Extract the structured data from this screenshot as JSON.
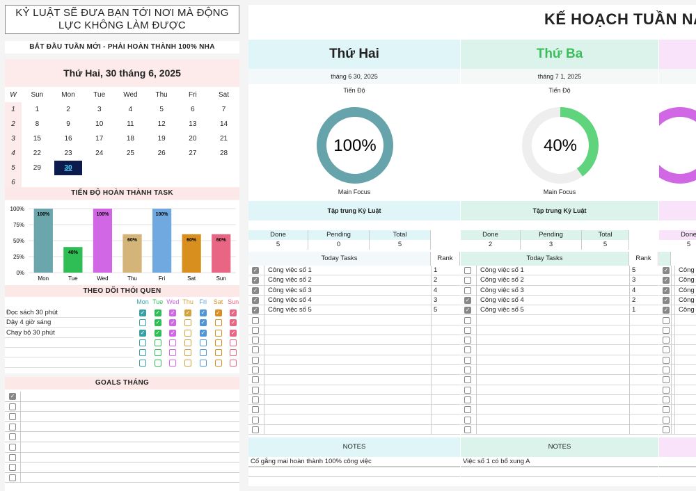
{
  "quote": "KỶ LUẬT SẼ ĐƯA BẠN TỚI NƠI MÀ ĐỘNG LỰC KHÔNG LÀM ĐƯỢC",
  "week_header": "BẮT ĐẦU TUẦN MỚI - PHẢI HOÀN THÀNH 100% NHA",
  "calendar": {
    "title": "Thứ Hai, 30 tháng 6, 2025",
    "week_label": "W",
    "day_headers": [
      "Sun",
      "Mon",
      "Tue",
      "Wed",
      "Thu",
      "Fri",
      "Sat"
    ],
    "week_numbers": [
      "1",
      "2",
      "3",
      "4",
      "5",
      "6"
    ],
    "weeks": [
      [
        "1",
        "2",
        "3",
        "4",
        "5",
        "6",
        "7"
      ],
      [
        "8",
        "9",
        "10",
        "11",
        "12",
        "13",
        "14"
      ],
      [
        "15",
        "16",
        "17",
        "18",
        "19",
        "20",
        "21"
      ],
      [
        "22",
        "23",
        "24",
        "25",
        "26",
        "27",
        "28"
      ],
      [
        "29",
        "30",
        "",
        "",
        "",
        "",
        ""
      ],
      [
        "",
        "",
        "",
        "",
        "",
        "",
        ""
      ]
    ],
    "selected_day": "30"
  },
  "chart_section_title": "TIẾN ĐỘ HOÀN THÀNH TASK",
  "chart_data": {
    "type": "bar",
    "categories": [
      "Mon",
      "Tue",
      "Wed",
      "Thu",
      "Fri",
      "Sat",
      "Sun"
    ],
    "values": [
      100,
      40,
      100,
      60,
      100,
      60,
      60
    ],
    "data_labels": [
      "100%",
      "40%",
      "100%",
      "60%",
      "100%",
      "60%",
      "60%"
    ],
    "colors": [
      "#6aa6ac",
      "#2fbd55",
      "#d267e6",
      "#d4b479",
      "#6fa9df",
      "#d88f1d",
      "#e86683"
    ],
    "ylim": [
      0,
      100
    ],
    "yticks": [
      "0%",
      "25%",
      "50%",
      "75%",
      "100%"
    ],
    "grid": true
  },
  "habits": {
    "title": "THEO DÕI THÓI QUEN",
    "days": [
      "Mon",
      "Tue",
      "Wed",
      "Thu",
      "Fri",
      "Sat",
      "Sun"
    ],
    "day_colors": [
      "#3aa0a8",
      "#2fbd55",
      "#d267e6",
      "#d4a23a",
      "#4f95d8",
      "#d88f1d",
      "#e86683"
    ],
    "items": [
      {
        "name": "Đọc sách 30 phút",
        "checks": [
          true,
          true,
          true,
          true,
          true,
          true,
          true
        ]
      },
      {
        "name": "Dậy 4 giờ sáng",
        "checks": [
          false,
          true,
          true,
          false,
          true,
          false,
          true
        ]
      },
      {
        "name": "Chạy bộ 30 phút",
        "checks": [
          true,
          true,
          true,
          false,
          true,
          false,
          true
        ]
      },
      {
        "name": "",
        "checks": [
          false,
          false,
          false,
          false,
          false,
          false,
          false
        ]
      },
      {
        "name": "",
        "checks": [
          false,
          false,
          false,
          false,
          false,
          false,
          false
        ]
      },
      {
        "name": "",
        "checks": [
          false,
          false,
          false,
          false,
          false,
          false,
          false
        ]
      }
    ]
  },
  "goals": {
    "title": "GOALS THÁNG",
    "checks": [
      true,
      false,
      false,
      false,
      false,
      false,
      false,
      false,
      false
    ]
  },
  "page_title": "KẾ HOẠCH TUẦN NÀY",
  "days": [
    {
      "name": "Thứ Hai",
      "name_color": "#222222",
      "head_bg": "#dff5f8",
      "accent_bg": "#dff5f8",
      "date": "tháng 6 30, 2025",
      "progress_label": "Tiến Độ",
      "progress": 100,
      "progress_text": "100%",
      "ring_color": "#67a3ab",
      "focus_label": "Main Focus",
      "focus": "Tập trung Kỷ Luật",
      "stats_labels": [
        "Done",
        "Pending",
        "Total"
      ],
      "stats_values": [
        "5",
        "0",
        "5"
      ],
      "task_header": "Today Tasks",
      "rank_header": "Rank",
      "tasks": [
        {
          "name": "Công việc số 1",
          "rank": "1",
          "done": true
        },
        {
          "name": "Công việc số 2",
          "rank": "2",
          "done": true
        },
        {
          "name": "Công việc số 3",
          "rank": "4",
          "done": true
        },
        {
          "name": "Công việc số 4",
          "rank": "3",
          "done": true
        },
        {
          "name": "Công việc số 5",
          "rank": "5",
          "done": true
        }
      ],
      "notes_header": "NOTES",
      "note": "Cố gắng mai hoàn thành 100% công việc"
    },
    {
      "name": "Thứ Ba",
      "name_color": "#3bbf5a",
      "head_bg": "#dcf3ec",
      "accent_bg": "#dcf3ec",
      "date": "tháng 7 1, 2025",
      "progress_label": "Tiến Độ",
      "progress": 40,
      "progress_text": "40%",
      "ring_color": "#5fd47d",
      "focus_label": "Main Focus",
      "focus": "Tập trung Kỷ Luật",
      "stats_labels": [
        "Done",
        "Pending",
        "Total"
      ],
      "stats_values": [
        "2",
        "3",
        "5"
      ],
      "task_header": "Today Tasks",
      "rank_header": "Rank",
      "tasks": [
        {
          "name": "Công việc số 1",
          "rank": "5",
          "done": false
        },
        {
          "name": "Công việc số 2",
          "rank": "3",
          "done": false
        },
        {
          "name": "Công việc số 3",
          "rank": "4",
          "done": false
        },
        {
          "name": "Công việc số 4",
          "rank": "2",
          "done": true
        },
        {
          "name": "Công việc số 5",
          "rank": "1",
          "done": true
        }
      ],
      "notes_header": "NOTES",
      "note": "Việc số 1 có bổ xung A"
    },
    {
      "name": "",
      "name_color": "#222222",
      "head_bg": "#f8e3fb",
      "accent_bg": "#f8e3fb",
      "date": "",
      "progress_label": "",
      "progress": 100,
      "progress_text": "",
      "ring_color": "#d267e6",
      "focus_label": "",
      "focus": "",
      "stats_labels": [
        "Done",
        "",
        ""
      ],
      "stats_values": [
        "5",
        "",
        ""
      ],
      "task_header": "",
      "rank_header": "",
      "tasks": [
        {
          "name": "Công v",
          "rank": "",
          "done": true
        },
        {
          "name": "Công v",
          "rank": "",
          "done": true
        },
        {
          "name": "Công v",
          "rank": "",
          "done": true
        },
        {
          "name": "Công v",
          "rank": "",
          "done": true
        },
        {
          "name": "Công v",
          "rank": "",
          "done": true
        }
      ],
      "notes_header": "",
      "note": ""
    }
  ]
}
